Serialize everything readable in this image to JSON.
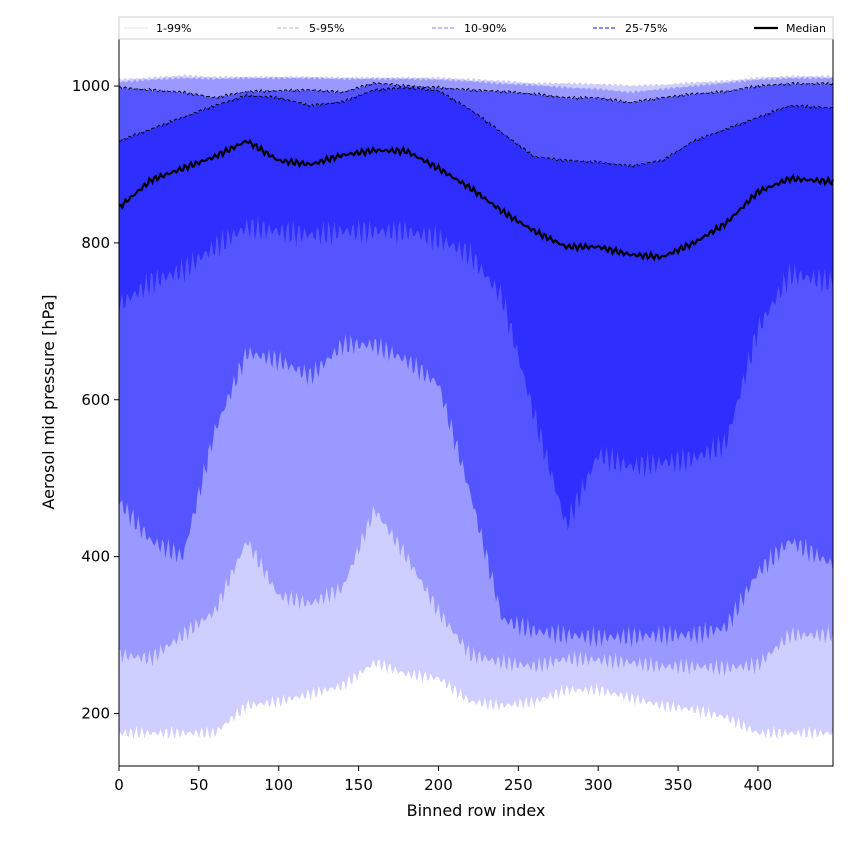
{
  "chart_data": {
    "type": "area",
    "title": "",
    "xlabel": "Binned row index",
    "ylabel": "Aerosol mid pressure [hPa]",
    "xlim": [
      0,
      447
    ],
    "ylim": [
      1060,
      133
    ],
    "y_inverted": true,
    "grid": false,
    "legend_position": "top",
    "x_ticks": [
      0,
      50,
      100,
      150,
      200,
      250,
      300,
      350,
      400
    ],
    "x_tick_labels": [
      "0",
      "50",
      "100",
      "150",
      "200",
      "250",
      "300",
      "350",
      "400"
    ],
    "y_ticks": [
      1000,
      800,
      600,
      400,
      200
    ],
    "y_tick_labels": [
      "1000",
      "800",
      "600",
      "400",
      "200"
    ],
    "legend": [
      {
        "label": "1-99%",
        "style": "solid",
        "color": "#c8c8f0",
        "width": 0.6
      },
      {
        "label": "5-95%",
        "style": "dashed",
        "color": "#a6a6f0",
        "width": 0.7
      },
      {
        "label": "10-90%",
        "style": "dashed",
        "color": "#8080f0",
        "width": 1.0
      },
      {
        "label": "25-75%",
        "style": "dashed",
        "color": "#4040ec",
        "width": 1.2
      },
      {
        "label": "Median",
        "style": "solid",
        "color": "#000000",
        "width": 2.2
      }
    ],
    "x": [
      0,
      20,
      40,
      60,
      80,
      100,
      120,
      140,
      160,
      180,
      200,
      220,
      240,
      260,
      280,
      300,
      320,
      340,
      360,
      380,
      400,
      420,
      447
    ],
    "series": [
      {
        "name": "1-99%",
        "color": "#cfcfff",
        "lower": [
          175,
          175,
          175,
          175,
          210,
          215,
          225,
          235,
          265,
          250,
          245,
          215,
          210,
          215,
          230,
          230,
          220,
          210,
          205,
          195,
          175,
          175,
          175
        ],
        "upper": [
          1008,
          1010,
          1013,
          1011,
          1011,
          1011,
          1011,
          1010,
          1010,
          1010,
          1010,
          1008,
          1006,
          1003,
          1003,
          1002,
          1000,
          1001,
          1004,
          1006,
          1010,
          1012,
          1012
        ]
      },
      {
        "name": "5-95%",
        "color": "#9999ff",
        "lower": [
          275,
          270,
          300,
          330,
          420,
          350,
          340,
          360,
          460,
          400,
          330,
          275,
          265,
          260,
          270,
          268,
          265,
          260,
          260,
          258,
          262,
          300,
          300
        ],
        "upper": [
          1005,
          1008,
          1010,
          1009,
          1010,
          1010,
          1010,
          1009,
          1009,
          1009,
          1008,
          1006,
          1003,
          1001,
          998,
          996,
          992,
          996,
          1000,
          1004,
          1008,
          1010,
          1010
        ]
      },
      {
        "name": "10-90%",
        "color": "#5555ff",
        "lower": [
          470,
          420,
          400,
          560,
          660,
          650,
          630,
          670,
          670,
          650,
          620,
          480,
          320,
          305,
          300,
          297,
          298,
          300,
          300,
          310,
          380,
          420,
          390
        ],
        "upper": [
          998,
          995,
          992,
          985,
          993,
          994,
          995,
          992,
          1004,
          1000,
          998,
          995,
          993,
          990,
          985,
          985,
          979,
          985,
          990,
          993,
          1000,
          1003,
          1003
        ]
      },
      {
        "name": "25-75%",
        "color": "#2e2eff",
        "lower": [
          720,
          750,
          765,
          795,
          820,
          815,
          810,
          815,
          815,
          815,
          805,
          785,
          730,
          580,
          440,
          530,
          515,
          520,
          525,
          545,
          690,
          760,
          750
        ],
        "upper": [
          930,
          945,
          960,
          975,
          988,
          985,
          975,
          980,
          995,
          998,
          994,
          970,
          940,
          910,
          905,
          903,
          898,
          905,
          930,
          945,
          960,
          975,
          972
        ]
      }
    ],
    "median": [
      845,
      880,
      895,
      910,
      930,
      905,
      900,
      912,
      918,
      917,
      895,
      870,
      840,
      815,
      795,
      795,
      785,
      782,
      800,
      825,
      865,
      882,
      878
    ]
  }
}
